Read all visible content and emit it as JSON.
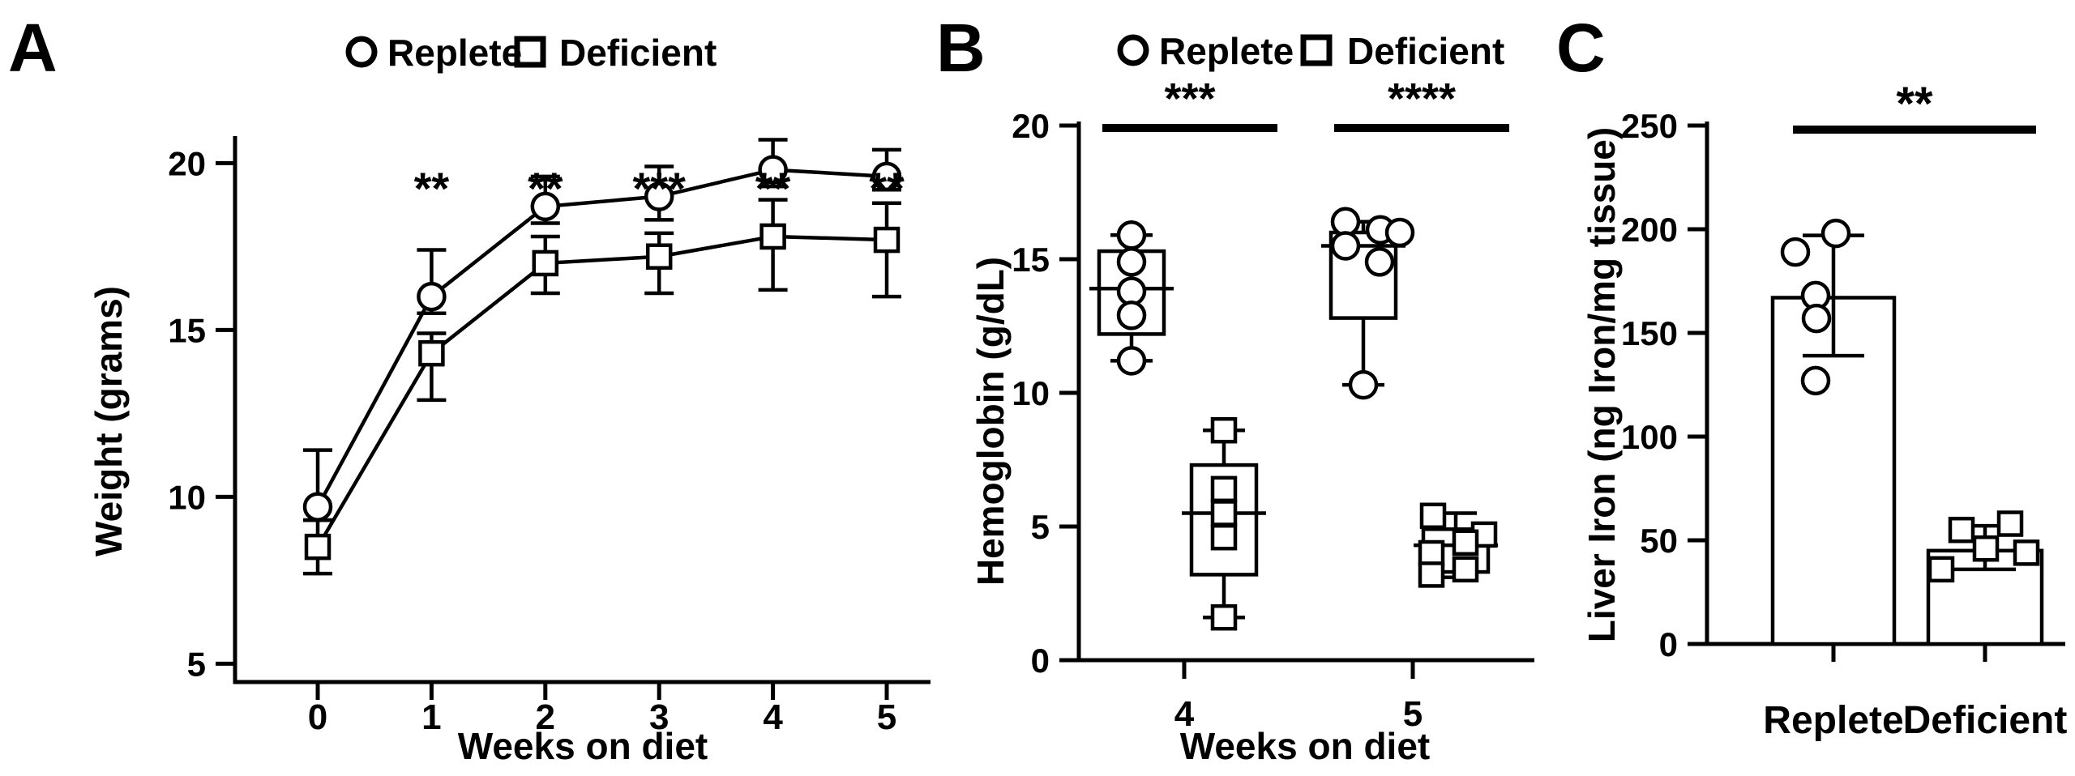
{
  "figure": {
    "background_color": "#ffffff",
    "ink_color": "#000000",
    "description": "Three-panel scientific figure comparing iron Replete vs iron Deficient diet groups"
  },
  "chart_data": [
    {
      "panel_label": "A",
      "type": "line",
      "title": "",
      "xlabel": "Weeks on diet",
      "ylabel": "Weight (grams)",
      "x": [
        0,
        1,
        2,
        3,
        4,
        5
      ],
      "xticks": [
        0,
        1,
        2,
        3,
        4,
        5
      ],
      "yticks": [
        5,
        10,
        15,
        20
      ],
      "ylim": [
        4.45,
        21.8
      ],
      "grid": false,
      "legend_position": "top",
      "legend": [
        {
          "marker": "circle",
          "label": "Replete"
        },
        {
          "marker": "square",
          "label": "Deficient"
        }
      ],
      "series": [
        {
          "name": "Replete",
          "marker": "circle",
          "values": [
            9.7,
            16.0,
            18.7,
            19.0,
            19.8,
            19.6
          ],
          "err_hi": [
            11.4,
            17.4,
            19.6,
            19.9,
            20.7,
            20.4
          ],
          "err_lo": [
            9.3,
            15.5,
            18.2,
            18.3,
            19.3,
            19.2
          ]
        },
        {
          "name": "Deficient",
          "marker": "square",
          "values": [
            8.5,
            14.3,
            17.0,
            17.2,
            17.8,
            17.7
          ],
          "err_hi": [
            9.3,
            14.9,
            17.8,
            17.9,
            18.9,
            18.8
          ],
          "err_lo": [
            7.7,
            12.9,
            16.1,
            16.1,
            16.2,
            16.0
          ]
        }
      ],
      "significance": [
        {
          "x": 1,
          "label": "**"
        },
        {
          "x": 2,
          "label": "**"
        },
        {
          "x": 3,
          "label": "***"
        },
        {
          "x": 4,
          "label": "**"
        },
        {
          "x": 5,
          "label": "**"
        }
      ]
    },
    {
      "panel_label": "B",
      "type": "box",
      "title": "",
      "xlabel": "Weeks on diet",
      "ylabel": "Hemoglobin (g/dL)",
      "yticks": [
        0,
        5,
        10,
        15,
        20
      ],
      "ylim": [
        0,
        20
      ],
      "grid": false,
      "legend_position": "top",
      "legend": [
        {
          "marker": "circle",
          "label": "Replete"
        },
        {
          "marker": "square",
          "label": "Deficient"
        }
      ],
      "groups": [
        {
          "week": "4",
          "significance": "***",
          "series": [
            {
              "name": "Replete",
              "marker": "circle",
              "q1": 12.2,
              "median": 13.9,
              "q3": 15.3,
              "whisker_lo": 11.2,
              "whisker_hi": 15.9,
              "points": [
                15.9,
                14.9,
                13.8,
                12.9,
                11.2
              ],
              "point_offsets": [
                0,
                0,
                0,
                0,
                0
              ]
            },
            {
              "name": "Deficient",
              "marker": "square",
              "q1": 3.2,
              "median": 5.5,
              "q3": 7.3,
              "whisker_lo": 1.6,
              "whisker_hi": 8.6,
              "points": [
                8.6,
                6.4,
                5.5,
                4.6,
                1.6
              ],
              "point_offsets": [
                0,
                0,
                0,
                0,
                0
              ]
            }
          ]
        },
        {
          "week": "5",
          "significance": "****",
          "series": [
            {
              "name": "Replete",
              "marker": "circle",
              "q1": 12.8,
              "median": 15.5,
              "q3": 16.0,
              "whisker_lo": 10.3,
              "whisker_hi": 16.4,
              "points": [
                16.4,
                16.1,
                15.5,
                16.0,
                14.9,
                10.3
              ],
              "point_offsets": [
                -22,
                21,
                -22,
                45,
                20,
                0
              ]
            },
            {
              "name": "Deficient",
              "marker": "square",
              "q1": 3.3,
              "median": 4.3,
              "q3": 4.9,
              "whisker_lo": 3.1,
              "whisker_hi": 5.5,
              "points": [
                5.4,
                4.7,
                4.4,
                4.0,
                3.4,
                3.2
              ],
              "point_offsets": [
                -28,
                35,
                12,
                -30,
                12,
                -30
              ]
            }
          ]
        }
      ]
    },
    {
      "panel_label": "C",
      "type": "bar",
      "title": "",
      "xlabel": "",
      "ylabel": "Liver Iron (ng Iron/mg tissue)",
      "categories": [
        "Replete",
        "Deficient"
      ],
      "values": [
        167,
        45
      ],
      "err_lo": [
        139,
        36
      ],
      "err_hi": [
        197,
        57
      ],
      "markers": [
        "circle",
        "square"
      ],
      "points": [
        [
          198,
          189,
          168,
          157,
          127
        ],
        [
          58,
          55,
          46,
          44,
          36
        ]
      ],
      "point_offsets": [
        [
          3,
          -47,
          -22,
          -21,
          -22
        ],
        [
          31,
          -29,
          1,
          51,
          -54
        ]
      ],
      "yticks": [
        0,
        50,
        100,
        150,
        200,
        250
      ],
      "ylim": [
        0,
        250
      ],
      "grid": false,
      "significance": "**"
    }
  ]
}
